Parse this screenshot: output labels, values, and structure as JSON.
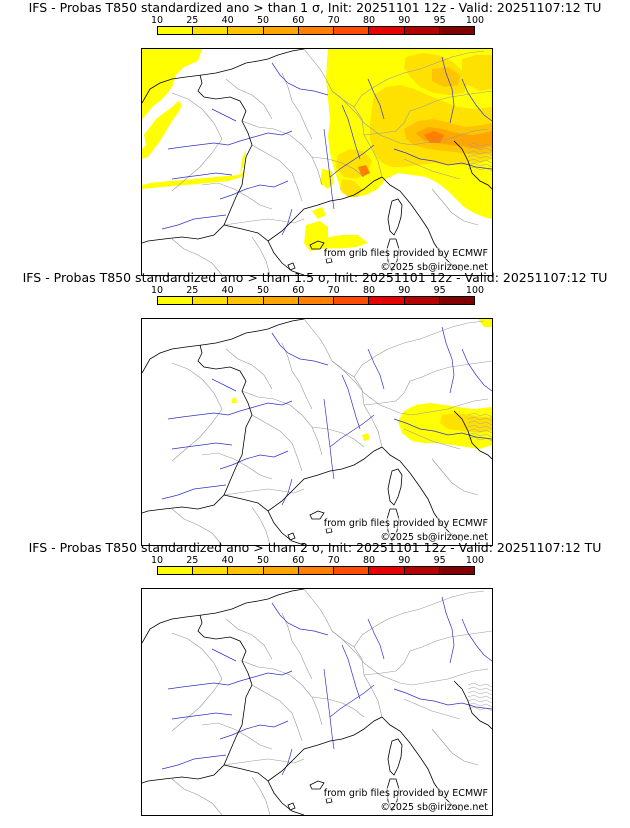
{
  "panels": [
    {
      "title": "IFS - Probas T850  standardized ano > than 1 σ, Init: 20251101 12z - Valid: 20251107:12 TU",
      "threshold": "1 σ",
      "coverage": "high"
    },
    {
      "title": "IFS - Probas T850  standardized ano > than 1.5 σ, Init: 20251101 12z - Valid: 20251107:12 TU",
      "threshold": "1.5 σ",
      "coverage": "medium"
    },
    {
      "title": "IFS - Probas T850  standardized ano > than 2 σ, Init: 20251101 12z - Valid: 20251107:12 TU",
      "threshold": "2 σ",
      "coverage": "none"
    }
  ],
  "colorbar": {
    "ticks": [
      "10",
      "25",
      "40",
      "50",
      "60",
      "70",
      "80",
      "90",
      "95",
      "100"
    ],
    "colors": [
      "#ffff00",
      "#ffe100",
      "#ffc400",
      "#ffa500",
      "#ff7f00",
      "#ff4c00",
      "#e60000",
      "#b30000",
      "#800000"
    ]
  },
  "credits": {
    "source": "from grib files provided by ECMWF",
    "copyright": "©2025 sb@irizone.net"
  },
  "colors": {
    "coast": "#000000",
    "river": "#3333cc",
    "border": "#9a9a9a",
    "mountain": "#a0a0a0"
  }
}
